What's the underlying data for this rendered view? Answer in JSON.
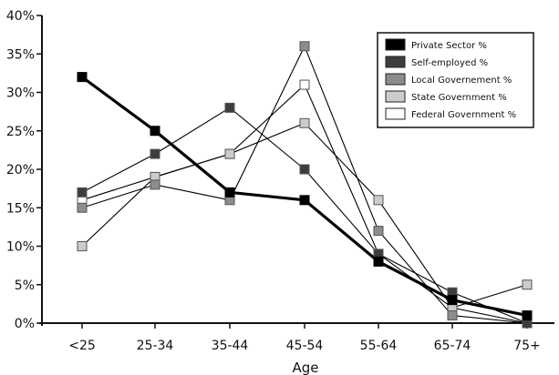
{
  "chart_data": {
    "type": "line",
    "title": "",
    "xlabel": "Age",
    "ylabel": "",
    "categories": [
      "<25",
      "25-34",
      "35-44",
      "45-54",
      "55-64",
      "65-74",
      "75+"
    ],
    "ylim": [
      0,
      40
    ],
    "yticks": [
      "0%",
      "5%",
      "10%",
      "15%",
      "20%",
      "25%",
      "30%",
      "35%",
      "40%"
    ],
    "grid": false,
    "legend": "top-right",
    "series": [
      {
        "name": "Private Sector %",
        "values": [
          32,
          25,
          17,
          16,
          8,
          3,
          1
        ],
        "color": "#000000"
      },
      {
        "name": "Self-employed %",
        "values": [
          17,
          22,
          28,
          20,
          9,
          4,
          0
        ],
        "color": "#3d3d3d"
      },
      {
        "name": "Local Governement %",
        "values": [
          15,
          18,
          16,
          36,
          12,
          1,
          0
        ],
        "color": "#8c8c8c"
      },
      {
        "name": "State Government %",
        "values": [
          10,
          19,
          22,
          26,
          16,
          2,
          5
        ],
        "color": "#cccccc"
      },
      {
        "name": "Federal Government %",
        "values": [
          16,
          19,
          22,
          31,
          9,
          2,
          0
        ],
        "color": "#ffffff"
      }
    ]
  }
}
